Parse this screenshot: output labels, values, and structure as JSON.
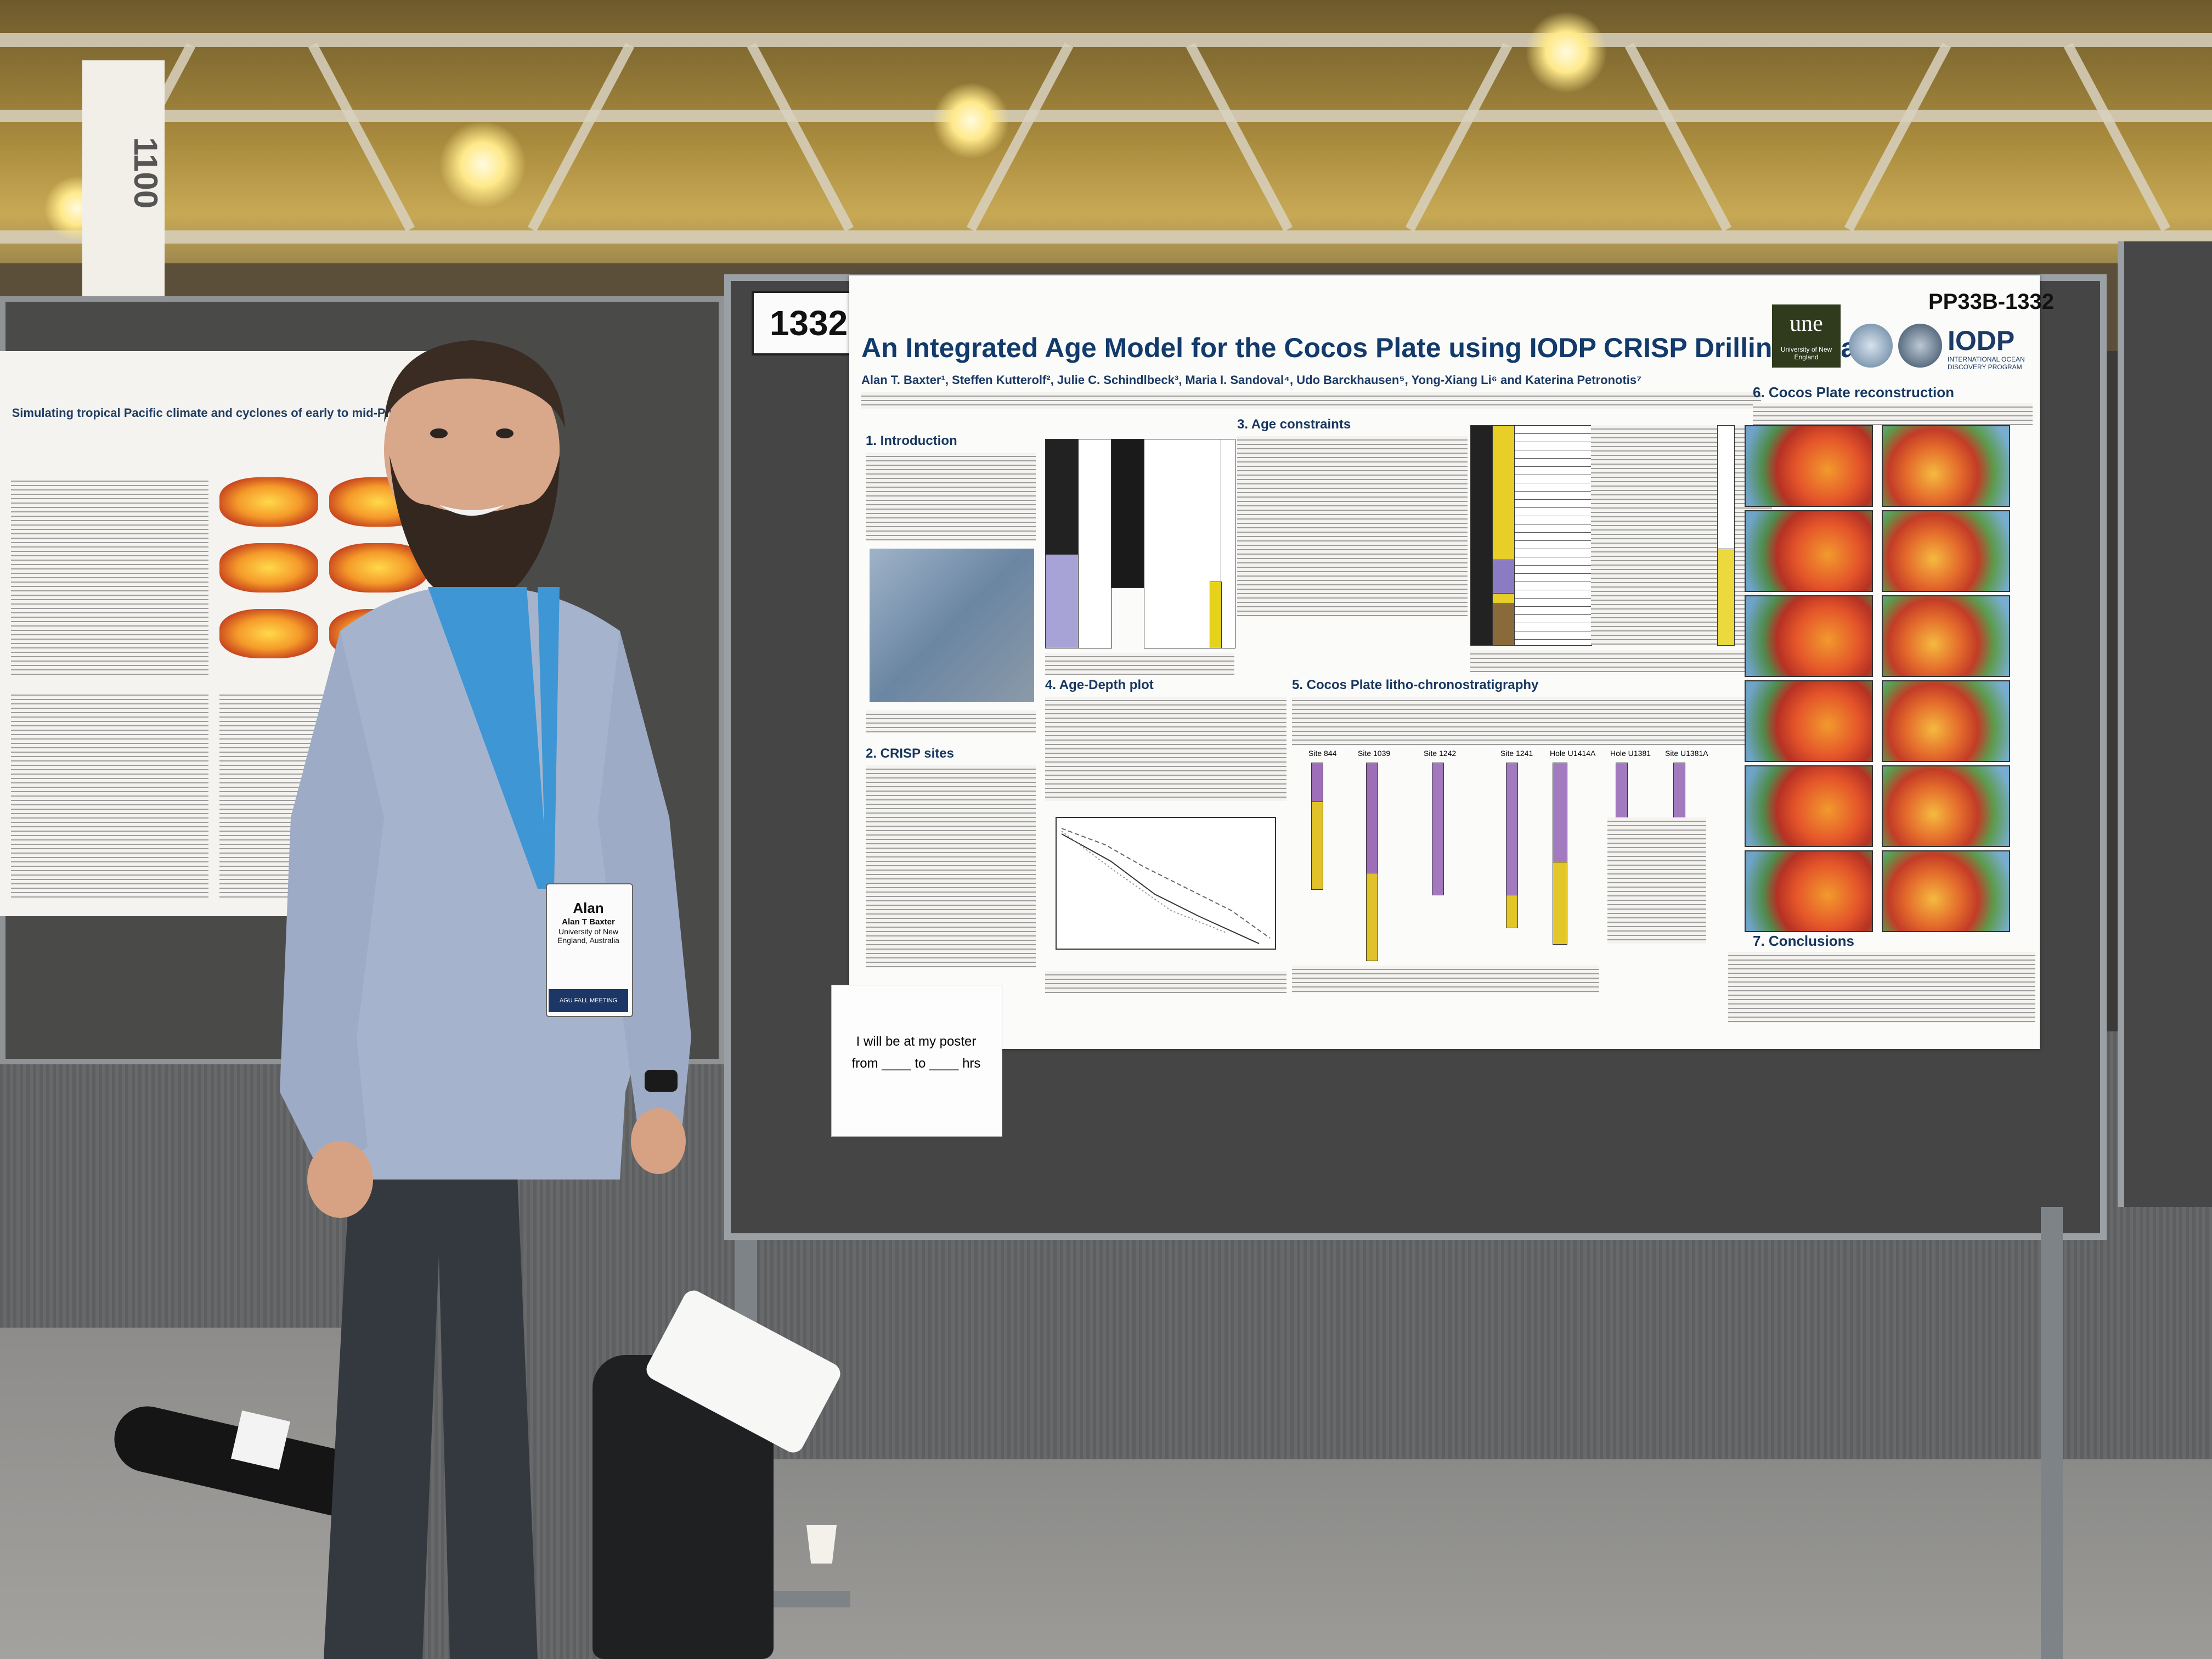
{
  "scene": {
    "board_number": "1332",
    "hall_sign_number": "1100"
  },
  "left_poster": {
    "title": "Simulating tropical Pacific climate and cyclones of early to mid-Pliocene"
  },
  "main_poster": {
    "title": "An Integrated Age Model for the Cocos Plate using IODP CRISP Drilling Data",
    "code": "PP33B-1332",
    "authors": "Alan T. Baxter¹, Steffen Kutterolf², Julie C. Schindlbeck³, Maria I. Sandoval⁴, Udo Barckhausen⁵, Yong-Xiang Li⁶ and Katerina Petronotis⁷",
    "logo_une": "une",
    "logo_une_sub": "University of New England",
    "logo_iodp": "IODP",
    "logo_iodp_sub": "INTERNATIONAL OCEAN DISCOVERY PROGRAM",
    "sections": {
      "s1": "1. Introduction",
      "s2": "2. CRISP sites",
      "s3": "3. Age constraints",
      "s4": "4. Age-Depth plot",
      "s5": "5. Cocos Plate litho-chronostratigraphy",
      "s6": "6. Cocos Plate reconstruction",
      "s7": "7. Conclusions"
    },
    "strat_labels": [
      "Site 844",
      "Site 1039",
      "Site 1242",
      "Site 1241",
      "Hole U1414A",
      "Hole U1381",
      "Site U1381A"
    ]
  },
  "sign": {
    "line1": "I will be at my poster",
    "line2": "from ____ to ____ hrs"
  },
  "badge": {
    "name": "Alan",
    "full_name": "Alan T Baxter",
    "org": "University of New England, Australia",
    "event": "AGU FALL MEETING"
  }
}
